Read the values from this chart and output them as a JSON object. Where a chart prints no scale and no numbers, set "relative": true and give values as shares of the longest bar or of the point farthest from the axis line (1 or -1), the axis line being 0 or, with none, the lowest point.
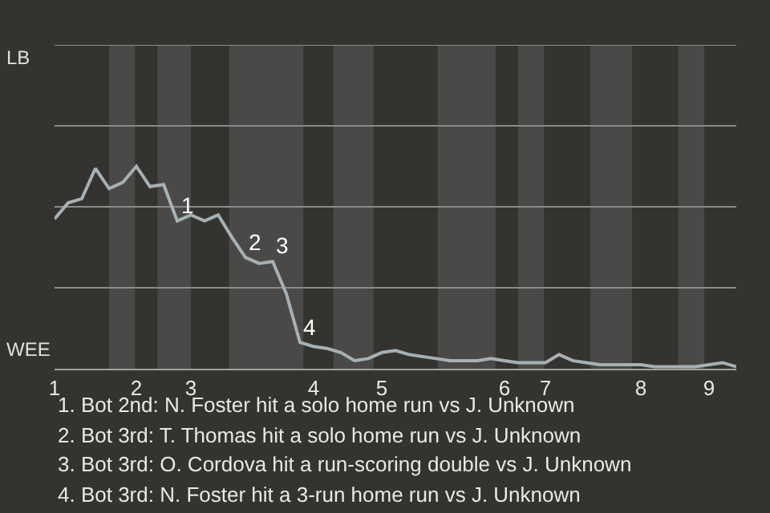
{
  "chart_data": {
    "type": "line",
    "categories": [
      "1",
      null,
      null,
      null,
      null,
      null,
      "2",
      null,
      null,
      null,
      "3",
      null,
      null,
      null,
      null,
      null,
      null,
      null,
      null,
      "4",
      null,
      null,
      null,
      null,
      "5",
      null,
      null,
      null,
      null,
      null,
      null,
      null,
      null,
      "6",
      null,
      null,
      "7",
      null,
      null,
      null,
      null,
      null,
      null,
      "8",
      null,
      null,
      null,
      null,
      "9",
      null,
      null
    ],
    "relative": true,
    "series": [
      {
        "color": "#a7b0b4",
        "values": [
          0.74,
          0.82,
          0.84,
          0.99,
          0.89,
          0.92,
          1,
          0.9,
          0.91,
          0.73,
          0.76,
          0.73,
          0.76,
          0.65,
          0.55,
          0.52,
          0.53,
          0.37,
          0.13,
          0.11,
          0.1,
          0.08,
          0.04,
          0.05,
          0.08,
          0.09,
          0.07,
          0.06,
          0.05,
          0.04,
          0.04,
          0.04,
          0.05,
          0.04,
          0.03,
          0.03,
          0.03,
          0.07,
          0.04,
          0.03,
          0.02,
          0.02,
          0.02,
          0.02,
          0.01,
          0.01,
          0.01,
          0.01,
          0.02,
          0.03,
          0.01
        ]
      }
    ],
    "ref_lines": [
      {
        "axis": "y",
        "value": 0.4,
        "color": "#8a8a8a"
      },
      {
        "axis": "y",
        "value": 0.8,
        "color": "#8a8a8a"
      },
      {
        "axis": "y",
        "value": 1.2,
        "color": "#8a8a8a"
      },
      {
        "axis": "y",
        "value": 1.6,
        "color": "#8a8a8a"
      }
    ],
    "annotations": [
      {
        "text": "1",
        "y": 0.73
      },
      {
        "text": "2",
        "y": 0.55
      },
      {
        "text": "3",
        "y": 0.53
      },
      {
        "text": "4",
        "y": 0.13
      },
      "LB",
      "WEE",
      "1. Bot 2nd: N. Foster hit a solo home run vs J. Unknown",
      "2. Bot 3rd: T. Thomas hit a solo home run vs J. Unknown",
      "3. Bot 3rd: O. Cordova hit a run-scoring double vs J. Unknown",
      "4. Bot 3rd: N. Foster hit a 3-run home run vs J. Unknown"
    ]
  }
}
